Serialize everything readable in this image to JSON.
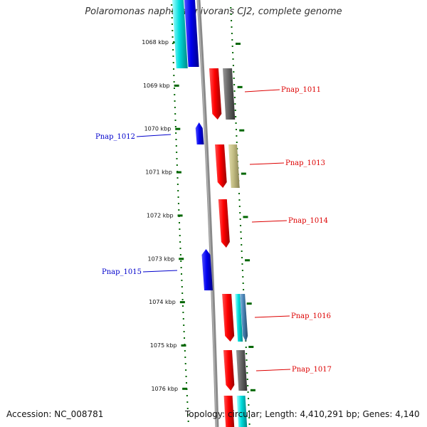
{
  "title": "Polaromonas naphthalenivorans CJ2, complete genome",
  "accession": "Accession: NC_008781",
  "topology": "Topology: circular; Length: 4,410,291 bp; Genes: 4,140",
  "ticks": [
    {
      "kbp": 1068,
      "label": "1068 kbp"
    },
    {
      "kbp": 1069,
      "label": "1069 kbp"
    },
    {
      "kbp": 1070,
      "label": "1070 kbp"
    },
    {
      "kbp": 1071,
      "label": "1071 kbp"
    },
    {
      "kbp": 1072,
      "label": "1072 kbp"
    },
    {
      "kbp": 1073,
      "label": "1073 kbp"
    },
    {
      "kbp": 1074,
      "label": "1074 kbp"
    },
    {
      "kbp": 1075,
      "label": "1075 kbp"
    },
    {
      "kbp": 1076,
      "label": "1076 kbp"
    }
  ],
  "colors": {
    "forward": "#dd0000",
    "reverse": "#0000cc",
    "backbone": "#888888",
    "tick": "#006600",
    "cyan": "#00cccc",
    "gray": "#666666",
    "khaki": "#b8b27a",
    "steelblue": "#4682b4"
  },
  "labels": [
    {
      "name": "Pnap_1011",
      "strand": "forward",
      "kbp": 1069.1
    },
    {
      "name": "Pnap_1012",
      "strand": "reverse",
      "kbp": 1070.2
    },
    {
      "name": "Pnap_1013",
      "strand": "forward",
      "kbp": 1070.8
    },
    {
      "name": "Pnap_1014",
      "strand": "forward",
      "kbp": 1072.1
    },
    {
      "name": "Pnap_1015",
      "strand": "reverse",
      "kbp": 1073.3
    },
    {
      "name": "Pnap_1016",
      "strand": "forward",
      "kbp": 1074.35
    },
    {
      "name": "Pnap_1017",
      "strand": "forward",
      "kbp": 1075.6
    }
  ]
}
